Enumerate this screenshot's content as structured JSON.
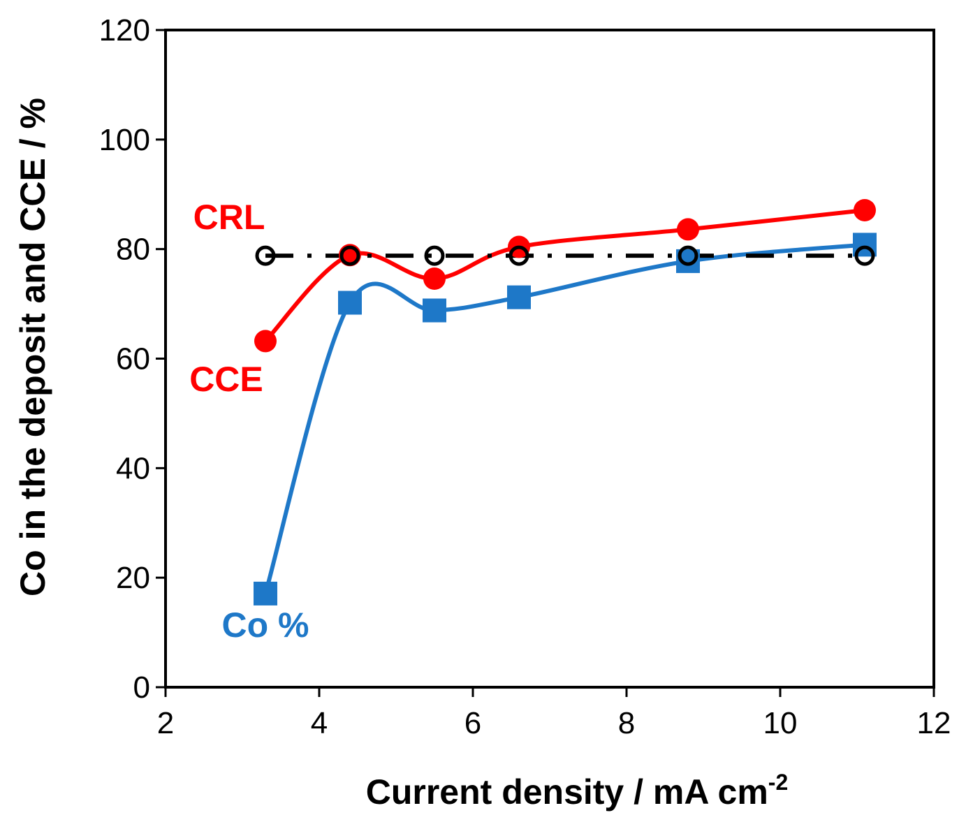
{
  "chart_data": {
    "type": "line",
    "title": "",
    "xlabel": "Current density / mA cm",
    "xlabel_sup": "-2",
    "ylabel": "Co in the deposit and CCE / %",
    "xlim": [
      2,
      12
    ],
    "ylim": [
      0,
      120
    ],
    "xticks": [
      2,
      4,
      6,
      8,
      10,
      12
    ],
    "yticks": [
      0,
      20,
      40,
      60,
      80,
      100,
      120
    ],
    "grid": false,
    "series": [
      {
        "name": "CCE",
        "label": "CCE",
        "color": "#ff0000",
        "marker": "circle-filled",
        "line": "smooth-solid",
        "x": [
          3.3,
          4.4,
          5.5,
          6.6,
          8.8,
          11.1
        ],
        "values": [
          63.2,
          78.9,
          74.6,
          80.4,
          83.6,
          87.1
        ]
      },
      {
        "name": "Co %",
        "label": "Co %",
        "color": "#1e78c8",
        "marker": "square-filled",
        "line": "smooth-solid",
        "x": [
          3.3,
          4.4,
          5.5,
          6.6,
          8.8,
          11.1
        ],
        "values": [
          17.1,
          70.2,
          68.8,
          71.2,
          77.8,
          80.8
        ]
      },
      {
        "name": "CRL",
        "label": "CRL",
        "color": "#000000",
        "marker": "circle-open",
        "line": "dash-dot",
        "x": [
          3.3,
          4.4,
          5.5,
          6.6,
          8.8,
          11.1
        ],
        "values": [
          78.8,
          78.8,
          78.8,
          78.8,
          78.8,
          78.8
        ]
      }
    ]
  }
}
